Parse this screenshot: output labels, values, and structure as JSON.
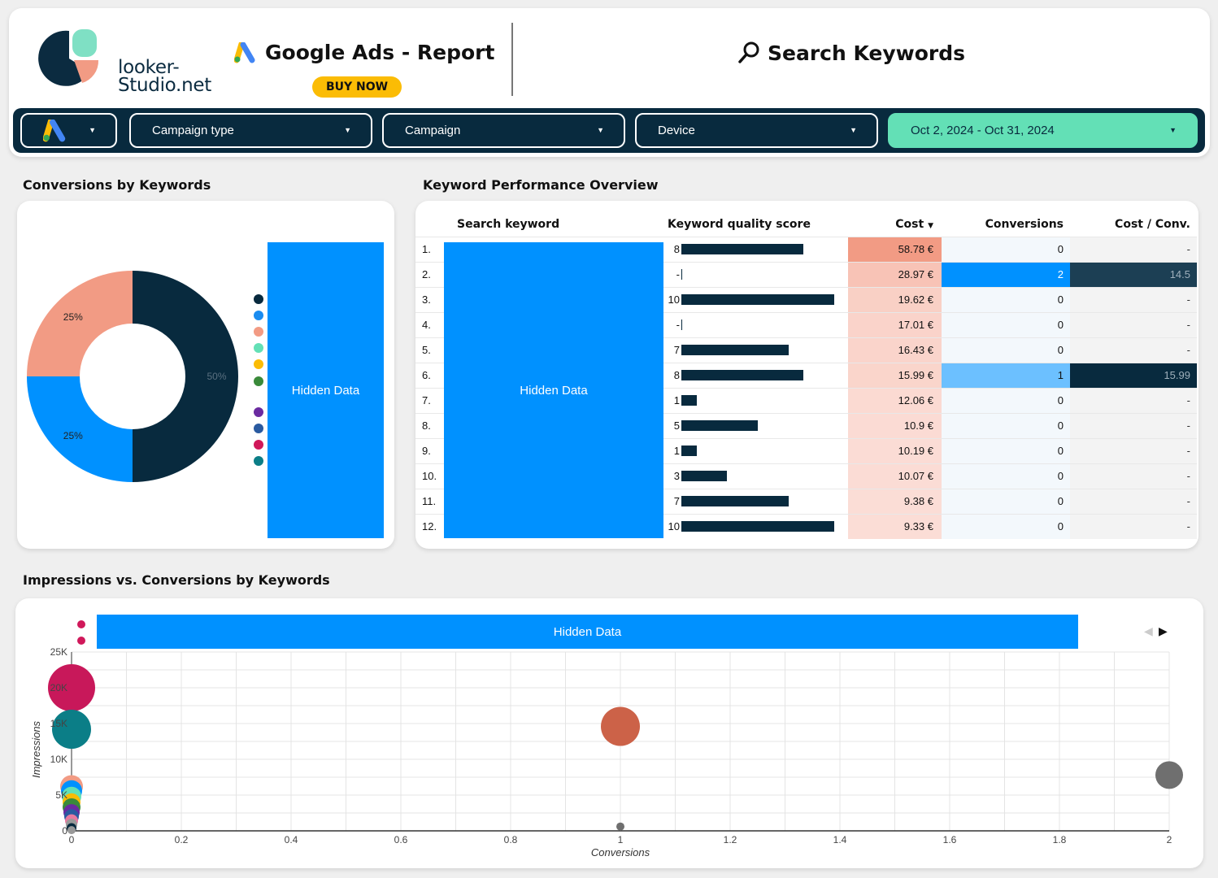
{
  "header": {
    "logo_line1": "looker-",
    "logo_line2": "Studio.net",
    "report_title": "Google Ads - Report",
    "buy_now": "BUY NOW",
    "page_title": "Search Keywords"
  },
  "filters": {
    "account": "",
    "campaign_type": "Campaign type",
    "campaign": "Campaign",
    "device": "Device",
    "date_range": "Oct 2, 2024 - Oct 31, 2024"
  },
  "sections": {
    "conversions_by_keywords": "Conversions by Keywords",
    "keyword_performance": "Keyword Performance Overview",
    "impressions_vs_conversions": "Impressions vs. Conversions by Keywords"
  },
  "hidden_label": "Hidden Data",
  "donut": {
    "slices": [
      {
        "value": 50,
        "label": "50%",
        "color": "#082a3e"
      },
      {
        "value": 25,
        "label": "25%",
        "color": "#0091ff"
      },
      {
        "value": 25,
        "label": "25%",
        "color": "#f29b84"
      }
    ],
    "legend_colors": [
      "#082a3e",
      "#1a8cf0",
      "#f29b84",
      "#63e0b6",
      "#fbbc05",
      "#3a8a3a",
      "#6a2aa0",
      "#2a5aa0",
      "#d0185a",
      "#0b7e87"
    ]
  },
  "table": {
    "headers": {
      "keyword": "Search keyword",
      "quality": "Keyword quality score",
      "cost": "Cost",
      "conversions": "Conversions",
      "cost_conv": "Cost / Conv."
    },
    "sort_icon": "▼",
    "rows": [
      {
        "n": "1.",
        "qs": "8",
        "qsv": 8,
        "cost": "58.78 €",
        "conv": "0",
        "cpc": "-"
      },
      {
        "n": "2.",
        "qs": "-",
        "qsv": 0,
        "cost": "28.97 €",
        "conv": "2",
        "cpc": "14.5"
      },
      {
        "n": "3.",
        "qs": "10",
        "qsv": 10,
        "cost": "19.62 €",
        "conv": "0",
        "cpc": "-"
      },
      {
        "n": "4.",
        "qs": "-",
        "qsv": 0,
        "cost": "17.01 €",
        "conv": "0",
        "cpc": "-"
      },
      {
        "n": "5.",
        "qs": "7",
        "qsv": 7,
        "cost": "16.43 €",
        "conv": "0",
        "cpc": "-"
      },
      {
        "n": "6.",
        "qs": "8",
        "qsv": 8,
        "cost": "15.99 €",
        "conv": "1",
        "cpc": "15.99"
      },
      {
        "n": "7.",
        "qs": "1",
        "qsv": 1,
        "cost": "12.06 €",
        "conv": "0",
        "cpc": "-"
      },
      {
        "n": "8.",
        "qs": "5",
        "qsv": 5,
        "cost": "10.9 €",
        "conv": "0",
        "cpc": "-"
      },
      {
        "n": "9.",
        "qs": "1",
        "qsv": 1,
        "cost": "10.19 €",
        "conv": "0",
        "cpc": "-"
      },
      {
        "n": "10.",
        "qs": "3",
        "qsv": 3,
        "cost": "10.07 €",
        "conv": "0",
        "cpc": "-"
      },
      {
        "n": "11.",
        "qs": "7",
        "qsv": 7,
        "cost": "9.38 €",
        "conv": "0",
        "cpc": "-"
      },
      {
        "n": "12.",
        "qs": "10",
        "qsv": 10,
        "cost": "9.33 €",
        "conv": "0",
        "cpc": "-"
      }
    ]
  },
  "chart_data": {
    "type": "scatter",
    "xlabel": "Conversions",
    "ylabel": "Impressions",
    "xlim": [
      0,
      2
    ],
    "ylim": [
      0,
      25000
    ],
    "x_ticks": [
      "0",
      "0.2",
      "0.4",
      "0.6",
      "0.8",
      "1",
      "1.2",
      "1.4",
      "1.6",
      "1.8",
      "2"
    ],
    "y_ticks": [
      "0",
      "5K",
      "10K",
      "15K",
      "20K",
      "25K"
    ],
    "grid": true,
    "legend_colors": [
      "#d0185a",
      "#d0185a"
    ],
    "points": [
      {
        "x": 0,
        "y": 20000,
        "r": 29,
        "color": "#c8185a"
      },
      {
        "x": 0,
        "y": 14200,
        "r": 24,
        "color": "#0b7e87"
      },
      {
        "x": 1,
        "y": 14600,
        "r": 24,
        "color": "#cc6248"
      },
      {
        "x": 2,
        "y": 7800,
        "r": 17,
        "color": "#6f6f6f"
      },
      {
        "x": 1,
        "y": 600,
        "r": 5,
        "color": "#6f6f6f"
      },
      {
        "x": 0,
        "y": 6200,
        "r": 14,
        "color": "#f29b84"
      },
      {
        "x": 0,
        "y": 5600,
        "r": 13,
        "color": "#0091ff"
      },
      {
        "x": 0,
        "y": 4800,
        "r": 12,
        "color": "#63e0b6"
      },
      {
        "x": 0,
        "y": 4000,
        "r": 11,
        "color": "#fbbc05"
      },
      {
        "x": 0,
        "y": 3300,
        "r": 11,
        "color": "#3a8a3a"
      },
      {
        "x": 0,
        "y": 2600,
        "r": 10,
        "color": "#6a2aa0"
      },
      {
        "x": 0,
        "y": 2000,
        "r": 9,
        "color": "#2a5aa0"
      },
      {
        "x": 0,
        "y": 1400,
        "r": 8,
        "color": "#e87aa0"
      },
      {
        "x": 0,
        "y": 900,
        "r": 7,
        "color": "#9a9a9a"
      },
      {
        "x": 0,
        "y": 400,
        "r": 6,
        "color": "#082a3e"
      },
      {
        "x": 0,
        "y": 100,
        "r": 5,
        "color": "#999999"
      }
    ]
  }
}
